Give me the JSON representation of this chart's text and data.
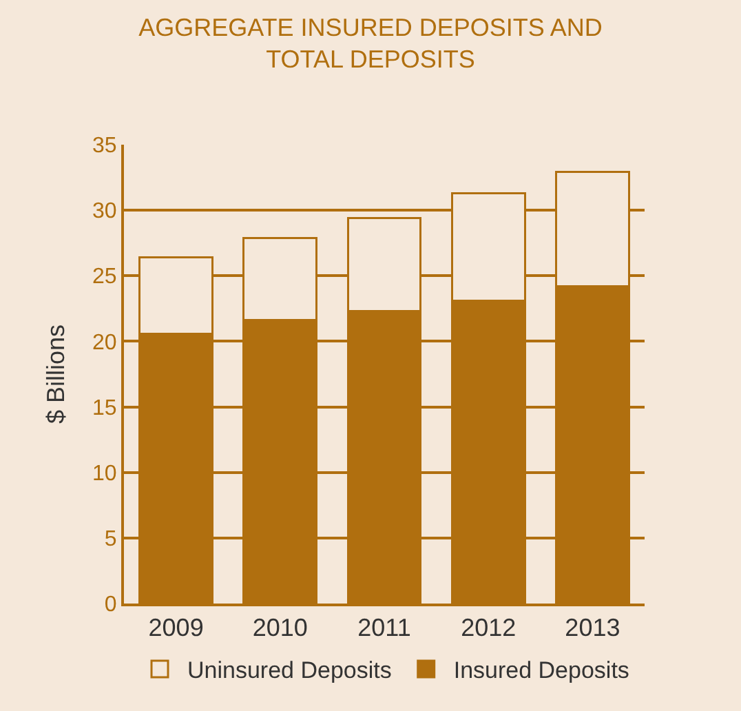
{
  "chart_data": {
    "type": "bar",
    "title": "AGGREGATE INSURED DEPOSITS AND\nTOTAL DEPOSITS",
    "ylabel": "$ Billions",
    "categories": [
      "2009",
      "2010",
      "2011",
      "2012",
      "2013"
    ],
    "series": [
      {
        "name": "Insured Deposits",
        "color": "#b06f0f",
        "values": [
          20.6,
          21.6,
          22.3,
          23.1,
          24.2
        ]
      },
      {
        "name": "Uninsured Deposits",
        "color": "#f5e8da",
        "values": [
          5.8,
          6.3,
          7.1,
          8.2,
          8.7
        ]
      }
    ],
    "stacked": true,
    "ylim": [
      0,
      35
    ],
    "yticks": [
      0,
      5,
      10,
      15,
      20,
      25,
      30,
      35
    ],
    "grid": "y",
    "legend": "bottom"
  }
}
